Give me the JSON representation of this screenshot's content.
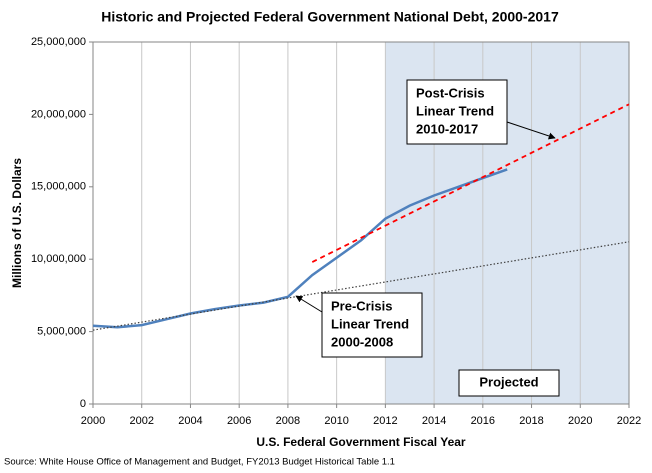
{
  "chart_data": {
    "type": "line",
    "title": "Historic and Projected Federal Government National Debt, 2000-2017",
    "x_label": "U.S. Federal Government Fiscal Year",
    "y_label": "Millions of U.S. Dollars",
    "source": "Source: White House Office of Management and Budget, FY2013 Budget Historical Table 1.1",
    "xlim": [
      2000,
      2022
    ],
    "xticks": [
      2000,
      2002,
      2004,
      2006,
      2008,
      2010,
      2012,
      2014,
      2016,
      2018,
      2020,
      2022
    ],
    "ylim": [
      0,
      25000000
    ],
    "yticks": [
      0,
      {
        "value": 5000000,
        "label": "5,000,000"
      },
      {
        "value": 10000000,
        "label": "10,000,000"
      },
      {
        "value": 15000000,
        "label": "15,000,000"
      },
      {
        "value": 20000000,
        "label": "20,000,000"
      },
      {
        "value": 25000000,
        "label": "25,000,000"
      }
    ],
    "grid": "x",
    "projected_region": {
      "range": [
        2012,
        2022
      ],
      "label": "Projected",
      "color": "#dbe5f1"
    },
    "series": [
      {
        "color": "#4f81bd",
        "style": "solid",
        "x": [
          2000,
          2001,
          2002,
          2003,
          2004,
          2005,
          2006,
          2007,
          2008,
          2009,
          2010,
          2011,
          2012,
          2013,
          2014,
          2015,
          2016,
          2017
        ],
        "values": [
          5400000,
          5300000,
          5450000,
          5850000,
          6250000,
          6550000,
          6800000,
          7000000,
          7400000,
          8900000,
          10100000,
          11300000,
          12800000,
          13700000,
          14400000,
          15000000,
          15600000,
          16200000
        ]
      },
      {
        "color": "#404040",
        "style": "dotted",
        "x": [
          2000,
          2022
        ],
        "values": [
          5100000,
          11200000
        ]
      },
      {
        "color": "#ff0000",
        "style": "dashed",
        "x": [
          2009,
          2022
        ],
        "values": [
          9800000,
          20700000
        ]
      }
    ],
    "annotations": [
      {
        "lines": [
          "Post-Crisis",
          "Linear Trend",
          "2010-2017"
        ]
      },
      {
        "lines": [
          "Pre-Crisis",
          "Linear Trend",
          "2000-2008"
        ]
      }
    ]
  }
}
